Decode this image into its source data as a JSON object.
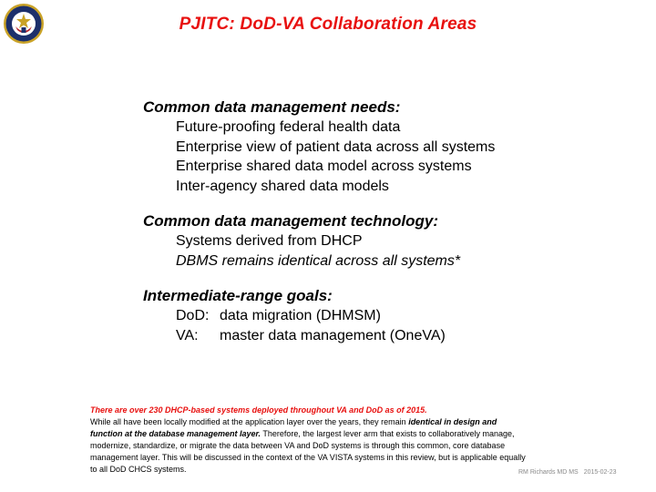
{
  "title": "PJITC: DoD-VA Collaboration Areas",
  "seal": "va-seal-icon",
  "sections": [
    {
      "heading": "Common data management needs:",
      "items": [
        "Future-proofing federal health data",
        "Enterprise view of patient data across all systems",
        "Enterprise shared data model across systems",
        "Inter-agency shared data models"
      ]
    },
    {
      "heading": "Common data management technology:",
      "items": [
        "Systems derived from DHCP",
        "DBMS remains identical across all systems*"
      ]
    },
    {
      "heading": "Intermediate-range goals:",
      "goals": [
        {
          "label": "DoD:",
          "text": "data migration  (DHMSM)"
        },
        {
          "label": "VA:",
          "text": "master data management (OneVA)"
        }
      ]
    }
  ],
  "footnote": {
    "highlight": "There are over 230 DHCP-based systems deployed throughout VA and DoD as of 2015.",
    "part1": "While all have been locally modified at the application layer over the years,  they remain ",
    "bold1": "identical  in design and function at the database management layer.",
    "part2": "   Therefore, the largest lever arm that exists to collaboratively manage, modernize, standardize,  or migrate the data between  VA and DoD systems is through this common, core database management layer. This will be discussed in the context of the  VA VISTA systems in this review, but is applicable equally to all DoD CHCS  systems."
  },
  "credit": {
    "author": "RM Richards MD MS",
    "date": "2015-02-23"
  },
  "colors": {
    "accent": "#e8100f",
    "seal_blue": "#1c2f6b",
    "seal_gold": "#c9a227"
  }
}
